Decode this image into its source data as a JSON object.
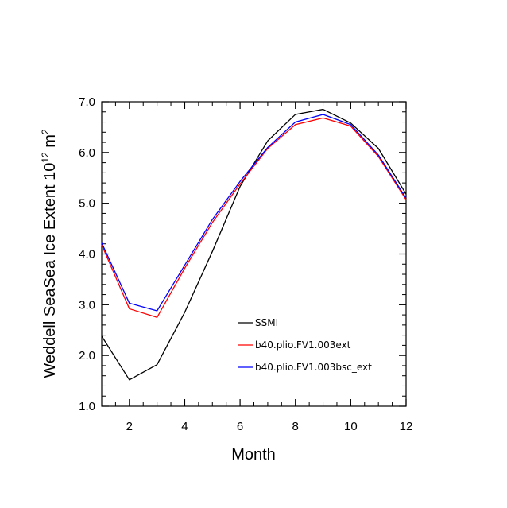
{
  "chart_data": {
    "type": "line",
    "xlabel": "Month",
    "ylabel": "Weddell SeaSea Ice Extent 10",
    "ylabel_exp": "12",
    "ylabel_unit": " m",
    "ylabel_unit_exp": "2",
    "xlim": [
      1,
      12
    ],
    "ylim": [
      1.0,
      7.0
    ],
    "xticks": [
      2,
      4,
      6,
      8,
      10,
      12
    ],
    "xtick_labels": [
      "2",
      "4",
      "6",
      "8",
      "10",
      "12"
    ],
    "yticks": [
      1.0,
      2.0,
      3.0,
      4.0,
      5.0,
      6.0,
      7.0
    ],
    "ytick_labels": [
      "1.0",
      "2.0",
      "3.0",
      "4.0",
      "5.0",
      "6.0",
      "7.0"
    ],
    "x": [
      1,
      2,
      3,
      4,
      5,
      6,
      7,
      8,
      9,
      10,
      11,
      12
    ],
    "series": [
      {
        "name": "SSMI",
        "color": "#000000",
        "values": [
          2.38,
          1.52,
          1.82,
          2.85,
          4.05,
          5.33,
          6.23,
          6.75,
          6.85,
          6.58,
          6.08,
          5.18
        ]
      },
      {
        "name": "b40.plio.FV1.003ext",
        "color": "#ff0000",
        "values": [
          4.18,
          2.92,
          2.75,
          3.72,
          4.62,
          5.38,
          6.08,
          6.55,
          6.68,
          6.52,
          5.92,
          5.07
        ]
      },
      {
        "name": "b40.plio.FV1.003bsc_ext",
        "color": "#0000ff",
        "values": [
          4.22,
          3.03,
          2.88,
          3.78,
          4.68,
          5.43,
          6.1,
          6.6,
          6.75,
          6.55,
          5.95,
          5.1
        ]
      }
    ],
    "legend_location": "lower-right interior"
  }
}
